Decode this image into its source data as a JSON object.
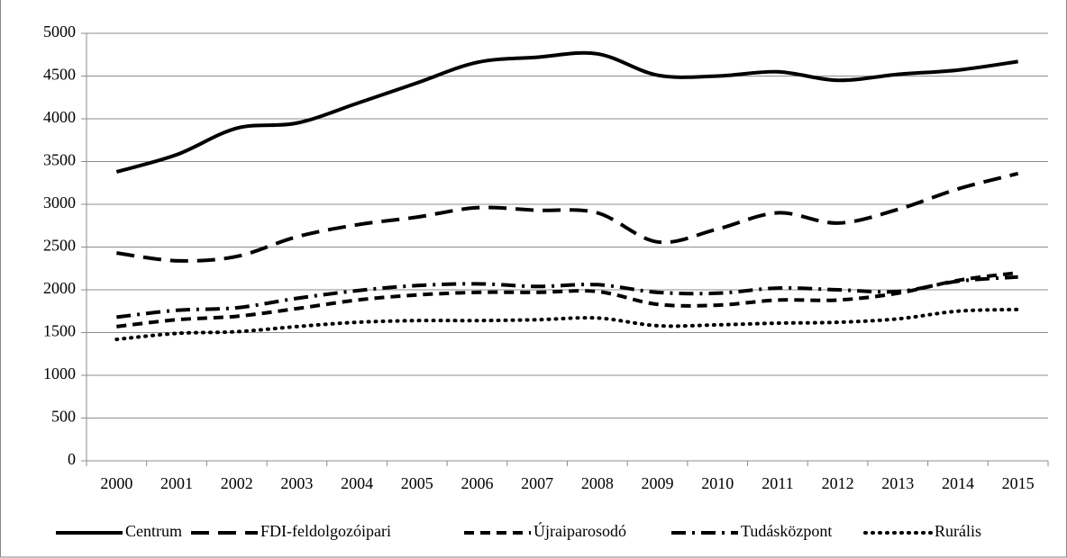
{
  "chart_data": {
    "type": "line",
    "categories": [
      "2000",
      "2001",
      "2002",
      "2003",
      "2004",
      "2005",
      "2006",
      "2007",
      "2008",
      "2009",
      "2010",
      "2011",
      "2012",
      "2013",
      "2014",
      "2015"
    ],
    "series": [
      {
        "name": "Centrum",
        "color": "#000000",
        "dash": "solid",
        "values": [
          3380,
          3580,
          3890,
          3950,
          4180,
          4420,
          4660,
          4720,
          4760,
          4510,
          4500,
          4550,
          4450,
          4520,
          4570,
          4670
        ]
      },
      {
        "name": "FDI-feldolgozóipari",
        "color": "#000000",
        "dash": "long-dash",
        "values": [
          2430,
          2340,
          2390,
          2620,
          2760,
          2850,
          2960,
          2930,
          2900,
          2560,
          2710,
          2900,
          2780,
          2940,
          3180,
          3360
        ]
      },
      {
        "name": "Újraiparosodó",
        "color": "#000000",
        "dash": "dash",
        "values": [
          1570,
          1650,
          1690,
          1780,
          1880,
          1940,
          1970,
          1970,
          1980,
          1830,
          1820,
          1880,
          1880,
          1960,
          2110,
          2200
        ]
      },
      {
        "name": "Tudásközpont",
        "color": "#000000",
        "dash": "dash-dot",
        "values": [
          1680,
          1760,
          1790,
          1900,
          1990,
          2050,
          2070,
          2040,
          2060,
          1970,
          1960,
          2020,
          2000,
          1980,
          2100,
          2150
        ]
      },
      {
        "name": "Rurális",
        "color": "#000000",
        "dash": "dot",
        "values": [
          1420,
          1490,
          1510,
          1570,
          1620,
          1640,
          1640,
          1650,
          1670,
          1580,
          1590,
          1610,
          1620,
          1660,
          1750,
          1770
        ]
      }
    ],
    "ylim": [
      0,
      5000
    ],
    "yticks": [
      0,
      500,
      1000,
      1500,
      2000,
      2500,
      3000,
      3500,
      4000,
      4500,
      5000
    ],
    "grid": true,
    "legend": "bottom"
  }
}
